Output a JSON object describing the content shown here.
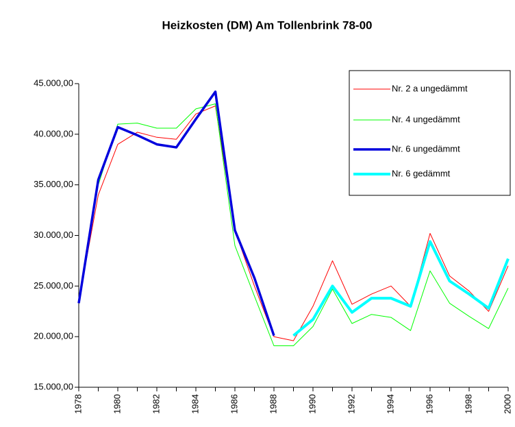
{
  "chart_data": {
    "type": "line",
    "title": "Heizkosten (DM) Am Tollenbrink 78-00",
    "categories": [
      "1978",
      null,
      "1980",
      null,
      "1982",
      null,
      "1984",
      null,
      "1986",
      null,
      "1988",
      null,
      "1990",
      null,
      "1992",
      null,
      "1994",
      null,
      "1996",
      null,
      "1998",
      null,
      "2000"
    ],
    "series": [
      {
        "name": "Nr. 2 a ungedämmt",
        "color": "#ff0000",
        "line_width": 1,
        "values": [
          23500,
          34000,
          39000,
          40200,
          39700,
          39500,
          42000,
          42800,
          30500,
          25000,
          20000,
          19600,
          23000,
          27500,
          23200,
          24200,
          25000,
          23000,
          30200,
          26000,
          24500,
          22500,
          27000
        ]
      },
      {
        "name": "Nr. 4 ungedämmt",
        "color": "#00ff00",
        "line_width": 1,
        "values": [
          23500,
          35000,
          41000,
          41100,
          40600,
          40600,
          42500,
          43000,
          29000,
          24000,
          19100,
          19100,
          21000,
          24700,
          21300,
          22200,
          21900,
          20600,
          26500,
          23300,
          22000,
          20800,
          24800
        ]
      },
      {
        "name": "Nr. 6 ungedämmt",
        "color": "#0000dd",
        "line_width": 3.5,
        "values": [
          23300,
          35500,
          40700,
          39900,
          39000,
          38700,
          41500,
          44200,
          30500,
          25800,
          20100,
          null,
          null,
          null,
          null,
          null,
          null,
          null,
          null,
          null,
          null,
          null,
          null
        ]
      },
      {
        "name": "Nr. 6 gedämmt",
        "color": "#00ffff",
        "line_width": 4,
        "values": [
          null,
          null,
          null,
          null,
          null,
          null,
          null,
          null,
          null,
          null,
          null,
          20100,
          21700,
          25000,
          22400,
          23800,
          23800,
          23000,
          29400,
          25500,
          24200,
          22800,
          27700
        ]
      }
    ],
    "ylim": [
      15000,
      45000
    ],
    "yticks": [
      {
        "value": 15000,
        "label": "15.000,00"
      },
      {
        "value": 20000,
        "label": "20.000,00"
      },
      {
        "value": 25000,
        "label": "25.000,00"
      },
      {
        "value": 30000,
        "label": "30.000,00"
      },
      {
        "value": 35000,
        "label": "35.000,00"
      },
      {
        "value": 40000,
        "label": "40.000,00"
      },
      {
        "value": 45000,
        "label": "45.000,00"
      }
    ],
    "grid": false,
    "legend": "upper right"
  }
}
